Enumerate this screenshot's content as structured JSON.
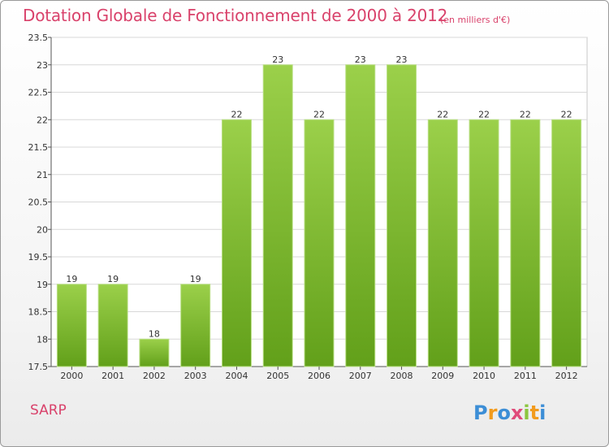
{
  "header": {
    "title": "Dotation Globale de Fonctionnement de 2000 à 2012",
    "unit": "(en milliers d'€)"
  },
  "footer": {
    "commune": "SARP",
    "logo_text": "Proxiti"
  },
  "colors": {
    "title": "#d9426b",
    "bar_top": "#9bd04a",
    "bar_bottom": "#62a01a",
    "grid": "#d8d8d8"
  },
  "chart_data": {
    "type": "bar",
    "title": "Dotation Globale de Fonctionnement de 2000 à 2012",
    "subtitle": "(en milliers d'€)",
    "xlabel": "",
    "ylabel": "",
    "categories": [
      "2000",
      "2001",
      "2002",
      "2003",
      "2004",
      "2005",
      "2006",
      "2007",
      "2008",
      "2009",
      "2010",
      "2011",
      "2012"
    ],
    "values": [
      19,
      19,
      18,
      19,
      22,
      23,
      22,
      23,
      23,
      22,
      22,
      22,
      22
    ],
    "ylim": [
      17.5,
      23.5
    ],
    "yticks": [
      "17.5",
      "18",
      "18.5",
      "19",
      "19.5",
      "20",
      "20.5",
      "21",
      "21.5",
      "22",
      "22.5",
      "23",
      "23.5"
    ],
    "grid": true,
    "legend": "none"
  }
}
